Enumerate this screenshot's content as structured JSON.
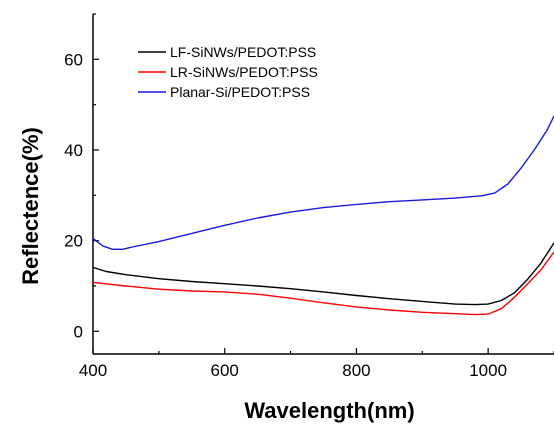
{
  "chart_data": {
    "type": "line",
    "xlabel": "Wavelength(nm)",
    "ylabel": "Reflectence(%)",
    "xlim": [
      400,
      1100
    ],
    "ylim": [
      -5,
      70
    ],
    "x_ticks": [
      400,
      600,
      800,
      1000
    ],
    "y_ticks": [
      0,
      20,
      40,
      60
    ],
    "legend_position": "top-left",
    "series": [
      {
        "name": "LF-SiNWs/PEDOT:PSS",
        "color": "#000000",
        "points": [
          [
            400,
            14.1
          ],
          [
            420,
            13.2
          ],
          [
            450,
            12.5
          ],
          [
            500,
            11.6
          ],
          [
            550,
            11.0
          ],
          [
            600,
            10.5
          ],
          [
            650,
            10.0
          ],
          [
            700,
            9.4
          ],
          [
            750,
            8.7
          ],
          [
            800,
            7.9
          ],
          [
            850,
            7.2
          ],
          [
            900,
            6.6
          ],
          [
            950,
            6.0
          ],
          [
            980,
            5.9
          ],
          [
            1000,
            6.0
          ],
          [
            1020,
            6.8
          ],
          [
            1040,
            8.5
          ],
          [
            1060,
            11.5
          ],
          [
            1080,
            15.0
          ],
          [
            1100,
            19.5
          ]
        ]
      },
      {
        "name": "LR-SiNWs/PEDOT:PSS",
        "color": "#ff0000",
        "points": [
          [
            400,
            10.8
          ],
          [
            450,
            10.0
          ],
          [
            500,
            9.3
          ],
          [
            550,
            8.9
          ],
          [
            600,
            8.7
          ],
          [
            650,
            8.2
          ],
          [
            700,
            7.3
          ],
          [
            750,
            6.3
          ],
          [
            800,
            5.4
          ],
          [
            850,
            4.7
          ],
          [
            900,
            4.2
          ],
          [
            950,
            3.9
          ],
          [
            980,
            3.7
          ],
          [
            1000,
            3.8
          ],
          [
            1020,
            5.0
          ],
          [
            1040,
            7.5
          ],
          [
            1060,
            10.5
          ],
          [
            1080,
            13.5
          ],
          [
            1100,
            17.5
          ]
        ]
      },
      {
        "name": "Planar-Si/PEDOT:PSS",
        "color": "#1a1adc",
        "points": [
          [
            400,
            20.5
          ],
          [
            415,
            18.8
          ],
          [
            430,
            18.1
          ],
          [
            445,
            18.1
          ],
          [
            460,
            18.6
          ],
          [
            500,
            19.8
          ],
          [
            550,
            21.6
          ],
          [
            600,
            23.4
          ],
          [
            650,
            25.0
          ],
          [
            700,
            26.3
          ],
          [
            750,
            27.3
          ],
          [
            800,
            28.0
          ],
          [
            850,
            28.6
          ],
          [
            900,
            29.0
          ],
          [
            950,
            29.4
          ],
          [
            990,
            29.9
          ],
          [
            1010,
            30.5
          ],
          [
            1030,
            32.5
          ],
          [
            1050,
            36.0
          ],
          [
            1070,
            40.0
          ],
          [
            1090,
            44.5
          ],
          [
            1100,
            47.5
          ]
        ]
      }
    ]
  }
}
